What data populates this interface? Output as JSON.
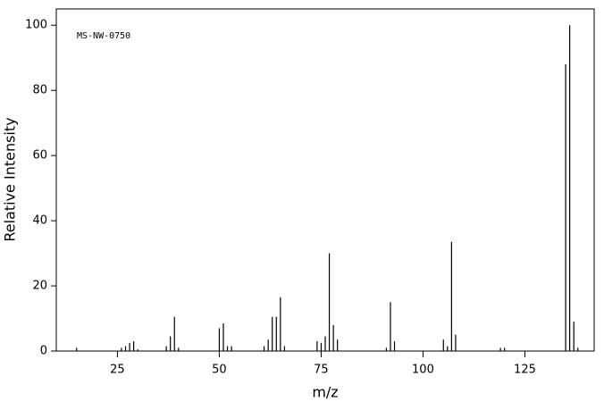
{
  "chart_data": {
    "type": "stick",
    "annotation": "MS-NW-0750",
    "xlabel": "m/z",
    "ylabel": "Relative Intensity",
    "x": [
      15,
      26,
      27,
      28,
      29,
      30,
      37,
      38,
      39,
      40,
      50,
      51,
      52,
      53,
      61,
      62,
      63,
      64,
      65,
      66,
      74,
      75,
      76,
      77,
      78,
      79,
      91,
      92,
      93,
      105,
      106,
      107,
      108,
      119,
      120,
      135,
      136,
      137,
      138
    ],
    "values": [
      1,
      1,
      1.5,
      2.5,
      3,
      0.5,
      1.5,
      4.5,
      10.5,
      1,
      7,
      8.5,
      1.5,
      1.5,
      1.5,
      3.5,
      10.5,
      10.5,
      16.5,
      1.5,
      3,
      2.5,
      4.5,
      30,
      8,
      3.5,
      1,
      15,
      3,
      3.5,
      1.5,
      33.5,
      5,
      1,
      1,
      88,
      100,
      9,
      1
    ],
    "color": "#000000",
    "xlim": [
      10,
      142
    ],
    "ylim": [
      0,
      105
    ],
    "xticks": [
      25,
      50,
      75,
      100,
      125
    ],
    "yticks": [
      0,
      20,
      40,
      60,
      80,
      100
    ]
  }
}
